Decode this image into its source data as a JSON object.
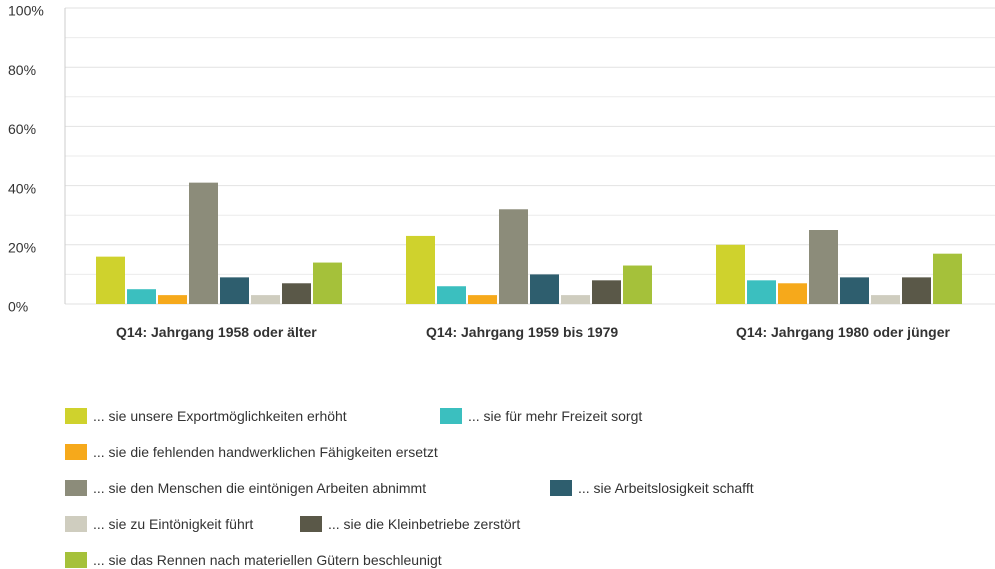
{
  "chart_data": {
    "type": "bar",
    "categories": [
      "Q14: Jahrgang 1958 oder älter",
      "Q14: Jahrgang 1959 bis 1979",
      "Q14: Jahrgang 1980 oder jünger"
    ],
    "series": [
      {
        "name": "... sie unsere Exportmöglichkeiten erhöht",
        "color": "#cfd22d",
        "values": [
          16,
          23,
          20
        ]
      },
      {
        "name": "... sie für mehr Freizeit sorgt",
        "color": "#3bbfbf",
        "values": [
          5,
          6,
          8
        ]
      },
      {
        "name": "... sie die fehlenden handwerklichen Fähigkeiten ersetzt",
        "color": "#f6a91b",
        "values": [
          3,
          3,
          7
        ]
      },
      {
        "name": "... sie den Menschen die eintönigen Arbeiten abnimmt",
        "color": "#8c8c7a",
        "values": [
          41,
          32,
          25
        ]
      },
      {
        "name": "... sie Arbeitslosigkeit schafft",
        "color": "#2e5e6e",
        "values": [
          9,
          10,
          9
        ]
      },
      {
        "name": "... sie zu Eintönigkeit führt",
        "color": "#cfcdbf",
        "values": [
          3,
          3,
          3
        ]
      },
      {
        "name": "... sie die Kleinbetriebe zerstört",
        "color": "#5a5848",
        "values": [
          7,
          8,
          9
        ]
      },
      {
        "name": "... sie das Rennen nach materiellen Gütern beschleunigt",
        "color": "#a5c13a",
        "values": [
          14,
          13,
          17
        ]
      }
    ],
    "ylim": [
      0,
      100
    ],
    "yticks": [
      {
        "value": 0,
        "label": "0%"
      },
      {
        "value": 20,
        "label": "20%"
      },
      {
        "value": 40,
        "label": "40%"
      },
      {
        "value": 60,
        "label": "60%"
      },
      {
        "value": 80,
        "label": "80%"
      },
      {
        "value": 100,
        "label": "100%"
      }
    ],
    "minor_yticks": [
      10,
      30,
      50,
      70,
      90
    ],
    "grid": true
  }
}
